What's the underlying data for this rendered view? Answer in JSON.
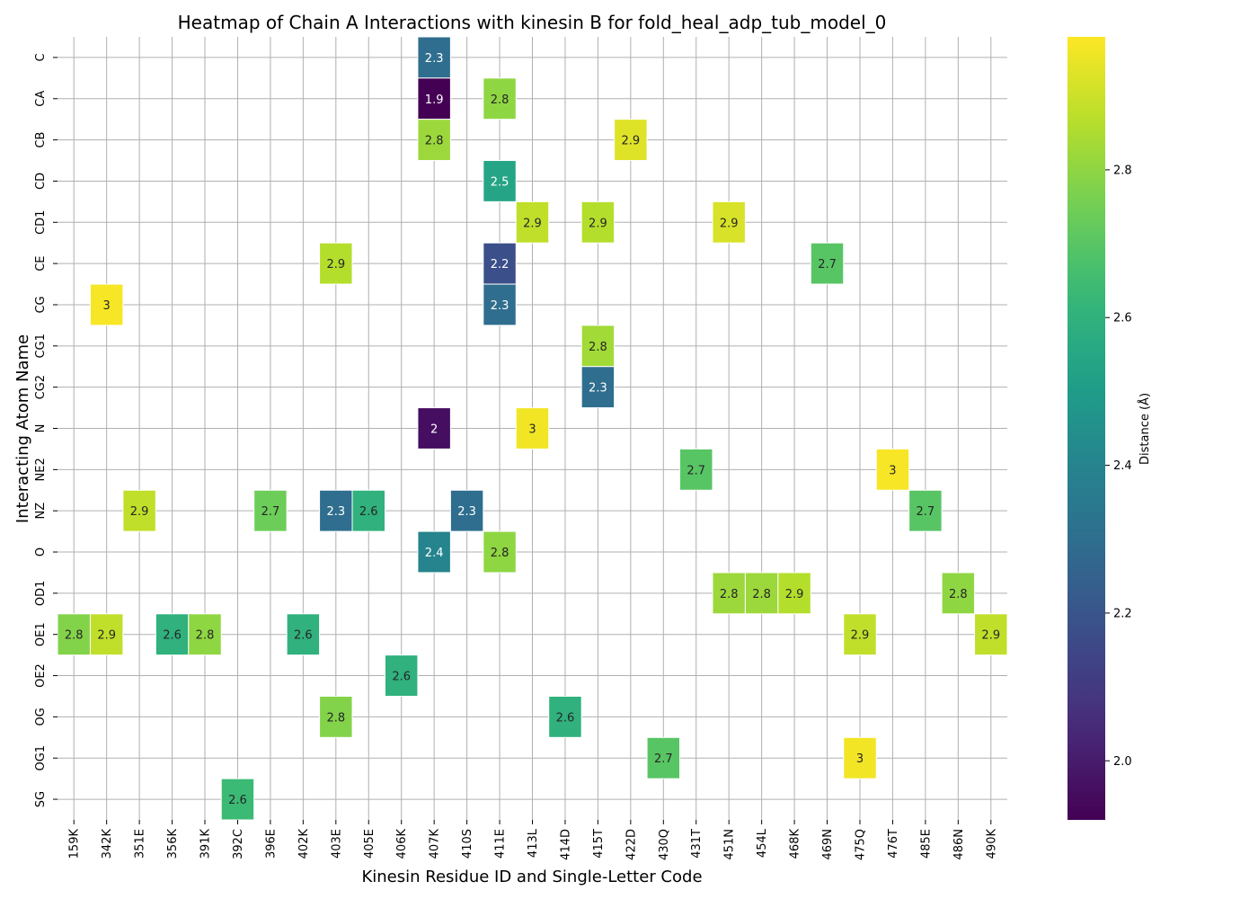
{
  "chart_data": {
    "type": "heatmap",
    "title": "Heatmap of Chain A Interactions with kinesin B for fold_heal_adp_tub_model_0",
    "xlabel": "Kinesin Residue ID and Single-Letter Code",
    "ylabel": "Interacting Atom Name",
    "x_categories": [
      "159K",
      "342K",
      "351E",
      "356K",
      "391K",
      "392C",
      "396E",
      "402K",
      "403E",
      "405E",
      "406K",
      "407K",
      "410S",
      "411E",
      "413L",
      "414D",
      "415T",
      "422D",
      "430Q",
      "431T",
      "451N",
      "454L",
      "468K",
      "469N",
      "475Q",
      "476T",
      "485E",
      "486N",
      "490K"
    ],
    "y_categories": [
      "C",
      "CA",
      "CB",
      "CD",
      "CD1",
      "CE",
      "CG",
      "CG1",
      "CG2",
      "N",
      "NE2",
      "NZ",
      "O",
      "OD1",
      "OE1",
      "OE2",
      "OG",
      "OG1",
      "SG"
    ],
    "cells": [
      {
        "x": "407K",
        "y": "C",
        "value": 2.3,
        "label": "2.3"
      },
      {
        "x": "407K",
        "y": "CA",
        "value": 1.92,
        "label": "1.9"
      },
      {
        "x": "411E",
        "y": "CA",
        "value": 2.8,
        "label": "2.8"
      },
      {
        "x": "407K",
        "y": "CB",
        "value": 2.82,
        "label": "2.8"
      },
      {
        "x": "422D",
        "y": "CB",
        "value": 2.93,
        "label": "2.9"
      },
      {
        "x": "411E",
        "y": "CD",
        "value": 2.54,
        "label": "2.5"
      },
      {
        "x": "413L",
        "y": "CD1",
        "value": 2.88,
        "label": "2.9"
      },
      {
        "x": "415T",
        "y": "CD1",
        "value": 2.86,
        "label": "2.9"
      },
      {
        "x": "451N",
        "y": "CD1",
        "value": 2.92,
        "label": "2.9"
      },
      {
        "x": "403E",
        "y": "CE",
        "value": 2.86,
        "label": "2.9"
      },
      {
        "x": "411E",
        "y": "CE",
        "value": 2.18,
        "label": "2.2"
      },
      {
        "x": "469N",
        "y": "CE",
        "value": 2.7,
        "label": "2.7"
      },
      {
        "x": "342K",
        "y": "CG",
        "value": 2.97,
        "label": "3"
      },
      {
        "x": "411E",
        "y": "CG",
        "value": 2.3,
        "label": "2.3"
      },
      {
        "x": "415T",
        "y": "CG1",
        "value": 2.83,
        "label": "2.8"
      },
      {
        "x": "415T",
        "y": "CG2",
        "value": 2.3,
        "label": "2.3"
      },
      {
        "x": "407K",
        "y": "N",
        "value": 1.96,
        "label": "2"
      },
      {
        "x": "413L",
        "y": "N",
        "value": 2.96,
        "label": "3"
      },
      {
        "x": "431T",
        "y": "NE2",
        "value": 2.7,
        "label": "2.7"
      },
      {
        "x": "476T",
        "y": "NE2",
        "value": 2.97,
        "label": "3"
      },
      {
        "x": "351E",
        "y": "NZ",
        "value": 2.88,
        "label": "2.9"
      },
      {
        "x": "396E",
        "y": "NZ",
        "value": 2.74,
        "label": "2.7"
      },
      {
        "x": "403E",
        "y": "NZ",
        "value": 2.3,
        "label": "2.3"
      },
      {
        "x": "405E",
        "y": "NZ",
        "value": 2.6,
        "label": "2.6"
      },
      {
        "x": "410S",
        "y": "NZ",
        "value": 2.3,
        "label": "2.3"
      },
      {
        "x": "485E",
        "y": "NZ",
        "value": 2.7,
        "label": "2.7"
      },
      {
        "x": "407K",
        "y": "O",
        "value": 2.4,
        "label": "2.4"
      },
      {
        "x": "411E",
        "y": "O",
        "value": 2.8,
        "label": "2.8"
      },
      {
        "x": "451N",
        "y": "OD1",
        "value": 2.82,
        "label": "2.8"
      },
      {
        "x": "454L",
        "y": "OD1",
        "value": 2.82,
        "label": "2.8"
      },
      {
        "x": "468K",
        "y": "OD1",
        "value": 2.86,
        "label": "2.9"
      },
      {
        "x": "486N",
        "y": "OD1",
        "value": 2.8,
        "label": "2.8"
      },
      {
        "x": "159K",
        "y": "OE1",
        "value": 2.78,
        "label": "2.8"
      },
      {
        "x": "342K",
        "y": "OE1",
        "value": 2.88,
        "label": "2.9"
      },
      {
        "x": "356K",
        "y": "OE1",
        "value": 2.6,
        "label": "2.6"
      },
      {
        "x": "391K",
        "y": "OE1",
        "value": 2.8,
        "label": "2.8"
      },
      {
        "x": "402K",
        "y": "OE1",
        "value": 2.6,
        "label": "2.6"
      },
      {
        "x": "475Q",
        "y": "OE1",
        "value": 2.88,
        "label": "2.9"
      },
      {
        "x": "490K",
        "y": "OE1",
        "value": 2.88,
        "label": "2.9"
      },
      {
        "x": "406K",
        "y": "OE2",
        "value": 2.6,
        "label": "2.6"
      },
      {
        "x": "403E",
        "y": "OG",
        "value": 2.78,
        "label": "2.8"
      },
      {
        "x": "414D",
        "y": "OG",
        "value": 2.6,
        "label": "2.6"
      },
      {
        "x": "430Q",
        "y": "OG1",
        "value": 2.7,
        "label": "2.7"
      },
      {
        "x": "475Q",
        "y": "OG1",
        "value": 2.96,
        "label": "3"
      },
      {
        "x": "392C",
        "y": "SG",
        "value": 2.64,
        "label": "2.6"
      }
    ],
    "color_scale": {
      "name": "viridis",
      "vmin": 1.92,
      "vmax": 2.98,
      "ticks": [
        2.0,
        2.2,
        2.4,
        2.6,
        2.8
      ],
      "tick_labels": [
        "2.0",
        "2.2",
        "2.4",
        "2.6",
        "2.8"
      ],
      "label": "Distance (Å)"
    },
    "grid": true
  }
}
